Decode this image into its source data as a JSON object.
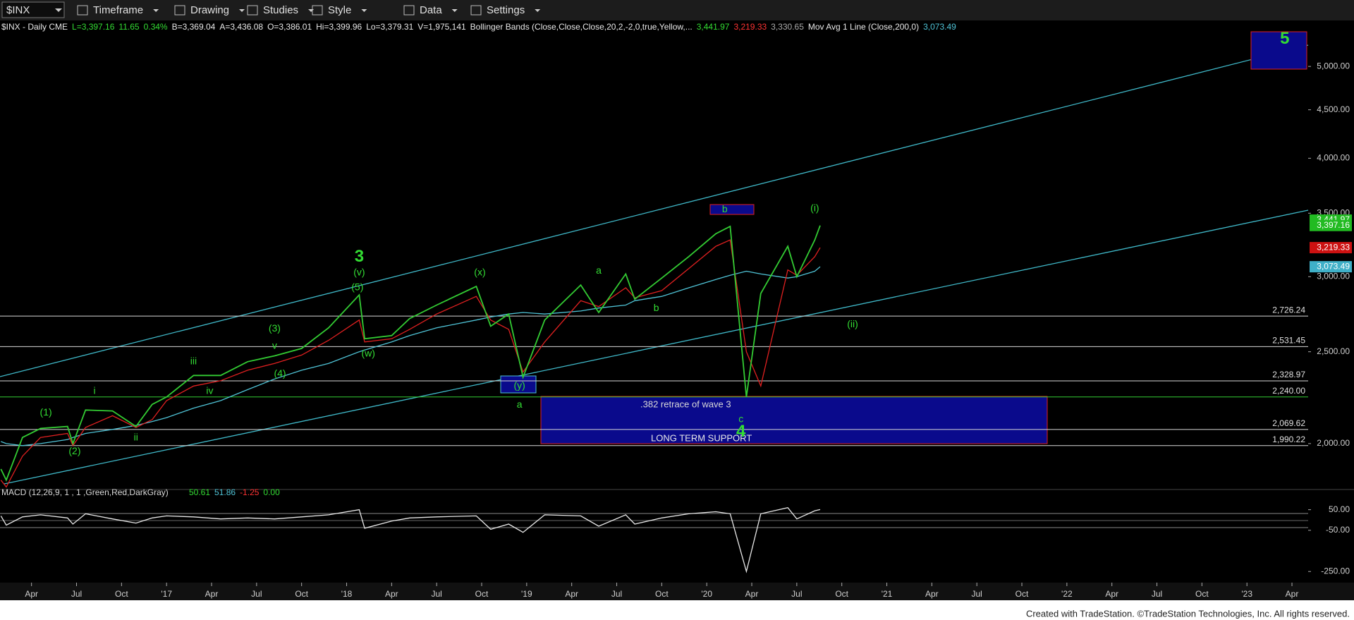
{
  "toolbar": {
    "symbol": "$INX",
    "menus": [
      "Timeframe",
      "Drawing",
      "Studies",
      "Style",
      "Data",
      "Settings"
    ]
  },
  "header": [
    {
      "text": "$INX - Daily CME",
      "color": "#e8e8e8"
    },
    {
      "text": "L=3,397.16",
      "color": "#33dd33"
    },
    {
      "text": "11.65",
      "color": "#33dd33"
    },
    {
      "text": "0.34%",
      "color": "#33dd33"
    },
    {
      "text": "B=3,369.04",
      "color": "#e8e8e8"
    },
    {
      "text": "A=3,436.08",
      "color": "#e8e8e8"
    },
    {
      "text": "O=3,386.01",
      "color": "#e8e8e8"
    },
    {
      "text": "Hi=3,399.96",
      "color": "#e8e8e8"
    },
    {
      "text": "Lo=3,379.31",
      "color": "#e8e8e8"
    },
    {
      "text": "V=1,975,141",
      "color": "#e8e8e8"
    },
    {
      "text": "Bollinger Bands (Close,Close,Close,20,2,-2,0,true,Yellow,...",
      "color": "#e8e8e8"
    },
    {
      "text": "3,441.97",
      "color": "#33dd33"
    },
    {
      "text": "3,219.33",
      "color": "#ff3333"
    },
    {
      "text": "3,330.65",
      "color": "#aaaaaa"
    },
    {
      "text": "Mov Avg 1 Line (Close,200,0)",
      "color": "#e8e8e8"
    },
    {
      "text": "3,073.49",
      "color": "#4fc3d6"
    }
  ],
  "chart_data": {
    "type": "line",
    "log_scale": true,
    "xlim": [
      2016.075,
      2023.34
    ],
    "xticks": [
      {
        "value": 2016.25,
        "label": "Apr"
      },
      {
        "value": 2016.5,
        "label": "Jul"
      },
      {
        "value": 2016.75,
        "label": "Oct"
      },
      {
        "value": 2017,
        "label": "'17"
      },
      {
        "value": 2017.25,
        "label": "Apr"
      },
      {
        "value": 2017.5,
        "label": "Jul"
      },
      {
        "value": 2017.75,
        "label": "Oct"
      },
      {
        "value": 2018,
        "label": "'18"
      },
      {
        "value": 2018.25,
        "label": "Apr"
      },
      {
        "value": 2018.5,
        "label": "Jul"
      },
      {
        "value": 2018.75,
        "label": "Oct"
      },
      {
        "value": 2019,
        "label": "'19"
      },
      {
        "value": 2019.25,
        "label": "Apr"
      },
      {
        "value": 2019.5,
        "label": "Jul"
      },
      {
        "value": 2019.75,
        "label": "Oct"
      },
      {
        "value": 2020,
        "label": "'20"
      },
      {
        "value": 2020.25,
        "label": "Apr"
      },
      {
        "value": 2020.5,
        "label": "Jul"
      },
      {
        "value": 2020.75,
        "label": "Oct"
      },
      {
        "value": 2021,
        "label": "'21"
      },
      {
        "value": 2021.25,
        "label": "Apr"
      },
      {
        "value": 2021.5,
        "label": "Jul"
      },
      {
        "value": 2021.75,
        "label": "Oct"
      },
      {
        "value": 2022,
        "label": "'22"
      },
      {
        "value": 2022.25,
        "label": "Apr"
      },
      {
        "value": 2022.5,
        "label": "Jul"
      },
      {
        "value": 2022.75,
        "label": "Oct"
      },
      {
        "value": 2023,
        "label": "'23"
      },
      {
        "value": 2023.25,
        "label": "Apr"
      }
    ],
    "ylim": [
      1795,
      5430
    ],
    "yticks": [
      {
        "value": 5000,
        "label": "5,000.00"
      },
      {
        "value": 4500,
        "label": "4,500.00"
      },
      {
        "value": 4000,
        "label": "4,000.00"
      },
      {
        "value": 3500,
        "label": "3,500.00"
      },
      {
        "value": 3000,
        "label": "3,000.00"
      },
      {
        "value": 2500,
        "label": "2,500.00"
      },
      {
        "value": 2000,
        "label": "2,000.00"
      }
    ],
    "x": [
      2016.08,
      2016.11,
      2016.2,
      2016.3,
      2016.45,
      2016.48,
      2016.55,
      2016.7,
      2016.83,
      2016.92,
      2017.0,
      2017.15,
      2017.3,
      2017.45,
      2017.6,
      2017.75,
      2017.9,
      2018.07,
      2018.1,
      2018.25,
      2018.35,
      2018.5,
      2018.72,
      2018.8,
      2018.9,
      2018.98,
      2019.1,
      2019.3,
      2019.4,
      2019.55,
      2019.6,
      2019.75,
      2019.9,
      2020.05,
      2020.13,
      2020.22,
      2020.3,
      2020.45,
      2020.5,
      2020.6,
      2020.63
    ],
    "series": [
      {
        "color": "#33cc33",
        "values": [
          1880,
          1830,
          2030,
          2075,
          2085,
          2000,
          2170,
          2165,
          2085,
          2200,
          2240,
          2360,
          2360,
          2440,
          2475,
          2520,
          2650,
          2870,
          2580,
          2600,
          2710,
          2800,
          2930,
          2660,
          2740,
          2350,
          2700,
          2940,
          2750,
          3020,
          2840,
          2990,
          3150,
          3330,
          3390,
          2240,
          2880,
          3230,
          3000,
          3280,
          3397.16
        ]
      },
      {
        "color": "#e02020",
        "values": [
          1830,
          1800,
          1940,
          2030,
          2050,
          1990,
          2080,
          2140,
          2080,
          2120,
          2220,
          2300,
          2330,
          2390,
          2430,
          2480,
          2570,
          2700,
          2560,
          2580,
          2640,
          2740,
          2860,
          2700,
          2640,
          2380,
          2560,
          2830,
          2790,
          2920,
          2850,
          2900,
          3060,
          3230,
          3280,
          2500,
          2300,
          3050,
          3010,
          3150,
          3219.33
        ]
      },
      {
        "color": "#4fc3d6",
        "values": [
          2010,
          2000,
          1990,
          2000,
          2020,
          2030,
          2050,
          2070,
          2090,
          2110,
          2130,
          2180,
          2220,
          2280,
          2340,
          2390,
          2430,
          2500,
          2510,
          2560,
          2600,
          2650,
          2700,
          2720,
          2740,
          2750,
          2740,
          2760,
          2780,
          2800,
          2830,
          2860,
          2920,
          2980,
          3010,
          3040,
          3020,
          2990,
          3000,
          3040,
          3073.49
        ]
      }
    ],
    "last_values": {
      "values": [
        3441.97,
        3397.16,
        3219.33,
        3073.49
      ],
      "value_labels": [
        "3,441.97",
        "3,397.16",
        "3,219.33",
        "3,073.49"
      ],
      "colors": [
        "#22bb22",
        "#22bb22",
        "#cc1111",
        "#3fb0c8"
      ]
    },
    "levels": {
      "values": [
        2726.24,
        2531.45,
        2328.97,
        2240.0,
        1990.22,
        2069.62
      ],
      "value_labels": [
        "2,726.24",
        "2,531.45",
        "2,328.97",
        "2,240.00",
        "1,990.22",
        "2,069.62"
      ],
      "colors": [
        "#d8d8d8",
        "#d8d8d8",
        "#d8d8d8",
        "#33cc33",
        "#d8d8d8",
        "#d8d8d8"
      ]
    },
    "annotations": [
      {
        "text": "3",
        "x": 2018.07,
        "y": 3146
      },
      {
        "text": "(v)",
        "x": 2018.07,
        "y": 3028
      },
      {
        "text": "(5)",
        "x": 2018.06,
        "y": 2922
      },
      {
        "text": "(x)",
        "x": 2018.74,
        "y": 3028
      },
      {
        "text": "a",
        "x": 2019.4,
        "y": 3041
      },
      {
        "text": "b",
        "x": 2019.72,
        "y": 2778
      },
      {
        "text": "b",
        "x": 2020.1,
        "y": 3530
      },
      {
        "text": "(i)",
        "x": 2020.6,
        "y": 3540
      },
      {
        "text": "(ii)",
        "x": 2020.81,
        "y": 2670
      },
      {
        "text": "c",
        "x": 2020.19,
        "y": 2120
      },
      {
        "text": "4",
        "x": 2020.19,
        "y": 2057
      },
      {
        "text": "a",
        "x": 2018.96,
        "y": 2196
      },
      {
        "text": "(y)",
        "x": 2018.96,
        "y": 2300
      },
      {
        "text": "(w)",
        "x": 2018.12,
        "y": 2486
      },
      {
        "text": "(3)",
        "x": 2017.6,
        "y": 2642
      },
      {
        "text": "v",
        "x": 2017.6,
        "y": 2534
      },
      {
        "text": "(4)",
        "x": 2017.63,
        "y": 2368
      },
      {
        "text": "iii",
        "x": 2017.15,
        "y": 2440
      },
      {
        "text": "iv",
        "x": 2017.24,
        "y": 2271
      },
      {
        "text": "i",
        "x": 2016.6,
        "y": 2271
      },
      {
        "text": "(1)",
        "x": 2016.33,
        "y": 2155
      },
      {
        "text": "(2)",
        "x": 2016.49,
        "y": 1961
      },
      {
        "text": "ii",
        "x": 2016.83,
        "y": 2028
      },
      {
        "text": "5",
        "x": 2023.21,
        "y": 5340
      }
    ],
    "zones": [
      ".382 retrace of wave 3",
      "LONG TERM SUPPORT"
    ]
  },
  "macd": {
    "title": "MACD (12,26,9, 1 , 1 ,Green,Red,DarkGray)",
    "readings": [
      {
        "text": "50.61",
        "color": "#33dd33"
      },
      {
        "text": "51.86",
        "color": "#4fc3d6"
      },
      {
        "text": "-1.25",
        "color": "#ff3333"
      },
      {
        "text": "0.00",
        "color": "#33dd33"
      }
    ],
    "ylim": [
      -304,
      100
    ],
    "yticks": [
      {
        "value": 50,
        "label": "50.00"
      },
      {
        "value": -50,
        "label": "-50.00"
      },
      {
        "value": -250,
        "label": "-250.00"
      }
    ],
    "color": "#e8e8e8",
    "values": [
      20,
      -25,
      15,
      25,
      10,
      -20,
      30,
      5,
      -15,
      10,
      20,
      15,
      5,
      10,
      5,
      15,
      25,
      50,
      -40,
      -5,
      10,
      15,
      20,
      -45,
      -20,
      -60,
      25,
      20,
      -30,
      25,
      -20,
      10,
      30,
      40,
      30,
      -250,
      30,
      60,
      5,
      45,
      50.61
    ]
  },
  "footer": "Created with TradeStation. ©TradeStation Technologies, Inc. All rights reserved."
}
